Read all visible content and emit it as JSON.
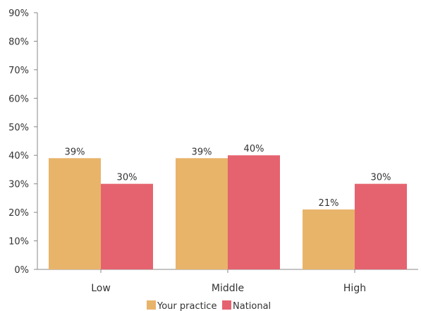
{
  "chart_data": {
    "type": "bar",
    "categories": [
      "Low",
      "Middle",
      "High"
    ],
    "series": [
      {
        "name": "Your practice",
        "values": [
          39,
          39,
          21
        ],
        "labels": [
          "39%",
          "39%",
          "21%"
        ],
        "color": "#e8b46a"
      },
      {
        "name": "National",
        "values": [
          30,
          40,
          30
        ],
        "labels": [
          "30%",
          "40%",
          "30%"
        ],
        "color": "#e5636f"
      }
    ],
    "y_ticks": [
      "0%",
      "10%",
      "20%",
      "30%",
      "40%",
      "50%",
      "60%",
      "70%",
      "80%",
      "90%"
    ],
    "ylim": [
      0,
      90
    ],
    "grid": false,
    "legend_position": "bottom"
  }
}
